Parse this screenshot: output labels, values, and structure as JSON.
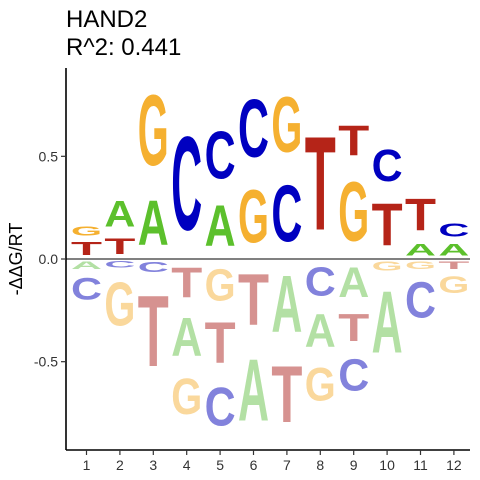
{
  "chart_data": {
    "type": "sequence-logo",
    "title_line1": "HAND2",
    "title_line2": "R^2: 0.441",
    "ylabel": "-ΔΔG/RT",
    "xlabel": "",
    "ylim": [
      -0.93,
      0.93
    ],
    "yticks": [
      {
        "value": 0.5,
        "label": "0.5"
      },
      {
        "value": 0.0,
        "label": "0.0"
      },
      {
        "value": -0.5,
        "label": "-0.5"
      }
    ],
    "positions": [
      "1",
      "2",
      "3",
      "4",
      "5",
      "6",
      "7",
      "8",
      "9",
      "10",
      "11",
      "12"
    ],
    "colors": {
      "A": "#5cc02c",
      "C": "#0000c0",
      "G": "#f5b030",
      "T": "#b52418",
      "A_neg": "#b3e0a4",
      "C_neg": "#8282dc",
      "G_neg": "#fad89c",
      "T_neg": "#d69290"
    },
    "columns": [
      {
        "pos": "1",
        "positive": [
          {
            "base": "T",
            "value": 0.1
          },
          {
            "base": "G",
            "value": 0.07
          }
        ],
        "negative": [
          {
            "base": "A",
            "value": -0.06
          },
          {
            "base": "C",
            "value": -0.17
          }
        ]
      },
      {
        "pos": "2",
        "positive": [
          {
            "base": "T",
            "value": 0.12
          },
          {
            "base": "A",
            "value": 0.2
          }
        ],
        "negative": [
          {
            "base": "C",
            "value": -0.05
          },
          {
            "base": "G",
            "value": -0.34
          }
        ]
      },
      {
        "pos": "3",
        "positive": [
          {
            "base": "A",
            "value": 0.35
          },
          {
            "base": "G",
            "value": 0.55
          }
        ],
        "negative": [
          {
            "base": "C",
            "value": -0.08
          },
          {
            "base": "T",
            "value": -0.55
          }
        ]
      },
      {
        "pos": "4",
        "positive": [
          {
            "base": "C",
            "value": 0.73
          }
        ],
        "negative": [
          {
            "base": "T",
            "value": -0.23
          },
          {
            "base": "A",
            "value": -0.3
          },
          {
            "base": "G",
            "value": -0.28
          }
        ]
      },
      {
        "pos": "5",
        "positive": [
          {
            "base": "A",
            "value": 0.32
          },
          {
            "base": "C",
            "value": 0.37
          }
        ],
        "negative": [
          {
            "base": "G",
            "value": -0.25
          },
          {
            "base": "T",
            "value": -0.32
          },
          {
            "base": "C",
            "value": -0.3
          }
        ]
      },
      {
        "pos": "6",
        "positive": [
          {
            "base": "G",
            "value": 0.41
          },
          {
            "base": "C",
            "value": 0.45
          }
        ],
        "negative": [
          {
            "base": "T",
            "value": -0.4
          },
          {
            "base": "A",
            "value": -0.48
          }
        ]
      },
      {
        "pos": "7",
        "positive": [
          {
            "base": "C",
            "value": 0.44
          },
          {
            "base": "G",
            "value": 0.43
          }
        ],
        "negative": [
          {
            "base": "A",
            "value": -0.44
          },
          {
            "base": "T",
            "value": -0.44
          }
        ]
      },
      {
        "pos": "8",
        "positive": [
          {
            "base": "T",
            "value": 0.73
          }
        ],
        "negative": [
          {
            "base": "C",
            "value": -0.22
          },
          {
            "base": "A",
            "value": -0.26
          },
          {
            "base": "G",
            "value": -0.26
          }
        ]
      },
      {
        "pos": "9",
        "positive": [
          {
            "base": "G",
            "value": 0.46
          },
          {
            "base": "T",
            "value": 0.23
          }
        ],
        "negative": [
          {
            "base": "A",
            "value": -0.23
          },
          {
            "base": "T",
            "value": -0.21
          },
          {
            "base": "C",
            "value": -0.25
          }
        ]
      },
      {
        "pos": "10",
        "positive": [
          {
            "base": "T",
            "value": 0.33
          },
          {
            "base": "C",
            "value": 0.25
          }
        ],
        "negative": [
          {
            "base": "G",
            "value": -0.07
          },
          {
            "base": "A",
            "value": -0.48
          }
        ]
      },
      {
        "pos": "11",
        "positive": [
          {
            "base": "A",
            "value": 0.09
          },
          {
            "base": "T",
            "value": 0.25
          }
        ],
        "negative": [
          {
            "base": "G",
            "value": -0.06
          },
          {
            "base": "C",
            "value": -0.28
          }
        ]
      },
      {
        "pos": "12",
        "positive": [
          {
            "base": "A",
            "value": 0.09
          },
          {
            "base": "C",
            "value": 0.1
          }
        ],
        "negative": [
          {
            "base": "T",
            "value": -0.06
          },
          {
            "base": "G",
            "value": -0.13
          }
        ]
      }
    ]
  }
}
